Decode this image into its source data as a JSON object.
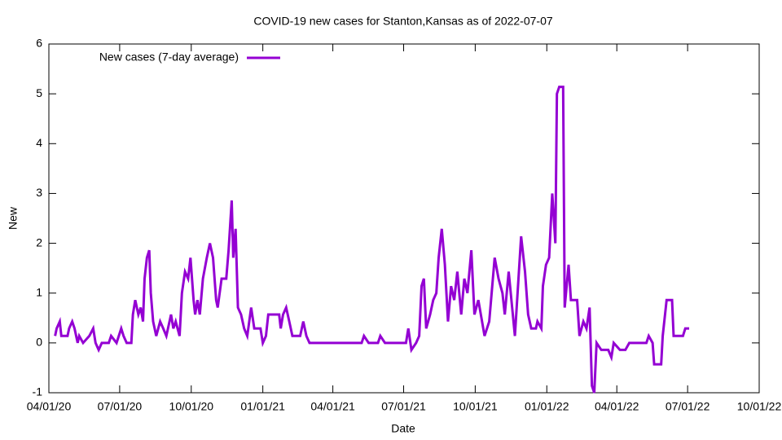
{
  "chart_data": {
    "type": "line",
    "title": "COVID-19 new cases for Stanton,Kansas as of 2022-07-07",
    "x_label": "Date",
    "y_label": "New",
    "legend": "top-left",
    "x": [
      "2020-04-09",
      "2020-04-11",
      "2020-04-15",
      "2020-04-17",
      "2020-04-25",
      "2020-04-27",
      "2020-05-01",
      "2020-05-04",
      "2020-05-08",
      "2020-05-10",
      "2020-05-15",
      "2020-05-23",
      "2020-05-28",
      "2020-05-31",
      "2020-06-04",
      "2020-06-08",
      "2020-06-17",
      "2020-06-20",
      "2020-06-27",
      "2020-07-03",
      "2020-07-06",
      "2020-07-10",
      "2020-07-16",
      "2020-07-18",
      "2020-07-21",
      "2020-07-25",
      "2020-07-28",
      "2020-07-31",
      "2020-08-02",
      "2020-08-05",
      "2020-08-08",
      "2020-08-10",
      "2020-08-13",
      "2020-08-17",
      "2020-08-22",
      "2020-08-26",
      "2020-08-30",
      "2020-09-05",
      "2020-09-08",
      "2020-09-11",
      "2020-09-16",
      "2020-09-19",
      "2020-09-23",
      "2020-09-27",
      "2020-09-30",
      "2020-10-04",
      "2020-10-06",
      "2020-10-09",
      "2020-10-12",
      "2020-10-16",
      "2020-10-21",
      "2020-10-25",
      "2020-10-29",
      "2020-11-02",
      "2020-11-04",
      "2020-11-09",
      "2020-11-15",
      "2020-11-18",
      "2020-11-22",
      "2020-11-24",
      "2020-11-27",
      "2020-11-30",
      "2020-12-04",
      "2020-12-08",
      "2020-12-12",
      "2020-12-17",
      "2020-12-21",
      "2020-12-29",
      "2021-01-01",
      "2021-01-05",
      "2021-01-08",
      "2021-01-14",
      "2021-01-22",
      "2021-01-24",
      "2021-01-27",
      "2021-01-31",
      "2021-02-04",
      "2021-02-08",
      "2021-02-13",
      "2021-02-18",
      "2021-02-22",
      "2021-02-26",
      "2021-03-02",
      "2021-05-08",
      "2021-05-11",
      "2021-05-17",
      "2021-05-29",
      "2021-06-01",
      "2021-06-07",
      "2021-07-04",
      "2021-07-07",
      "2021-07-11",
      "2021-07-17",
      "2021-07-21",
      "2021-07-24",
      "2021-07-27",
      "2021-07-30",
      "2021-08-04",
      "2021-08-08",
      "2021-08-12",
      "2021-08-15",
      "2021-08-19",
      "2021-08-23",
      "2021-08-27",
      "2021-08-31",
      "2021-09-04",
      "2021-09-08",
      "2021-09-13",
      "2021-09-17",
      "2021-09-21",
      "2021-09-26",
      "2021-09-30",
      "2021-10-05",
      "2021-10-13",
      "2021-10-19",
      "2021-10-26",
      "2021-10-31",
      "2021-11-05",
      "2021-11-08",
      "2021-11-13",
      "2021-11-21",
      "2021-11-25",
      "2021-11-29",
      "2021-12-04",
      "2021-12-08",
      "2021-12-12",
      "2021-12-18",
      "2021-12-20",
      "2021-12-25",
      "2021-12-27",
      "2021-12-31",
      "2022-01-04",
      "2022-01-08",
      "2022-01-12",
      "2022-01-14",
      "2022-01-17",
      "2022-01-22",
      "2022-01-24",
      "2022-01-29",
      "2022-02-01",
      "2022-02-09",
      "2022-02-12",
      "2022-02-17",
      "2022-02-21",
      "2022-02-25",
      "2022-02-28",
      "2022-03-03",
      "2022-03-06",
      "2022-03-12",
      "2022-03-21",
      "2022-03-25",
      "2022-03-28",
      "2022-04-05",
      "2022-04-12",
      "2022-04-17",
      "2022-05-09",
      "2022-05-12",
      "2022-05-17",
      "2022-05-19",
      "2022-05-28",
      "2022-05-30",
      "2022-06-04",
      "2022-06-11",
      "2022-06-13",
      "2022-06-25",
      "2022-06-28",
      "2022-07-03"
    ],
    "series": [
      {
        "name": "New cases (7-day average)",
        "color": "#9400d3",
        "values": [
          0.14,
          0.29,
          0.43,
          0.14,
          0.14,
          0.29,
          0.43,
          0.29,
          0,
          0.14,
          0,
          0.14,
          0.29,
          0,
          -0.14,
          0,
          0,
          0.14,
          0,
          0.29,
          0.14,
          0,
          0,
          0.57,
          0.86,
          0.57,
          0.71,
          0.43,
          1.29,
          1.71,
          1.86,
          1.0,
          0.43,
          0.14,
          0.43,
          0.29,
          0.14,
          0.57,
          0.29,
          0.43,
          0.14,
          1.0,
          1.43,
          1.29,
          1.71,
          0.86,
          0.57,
          0.86,
          0.57,
          1.29,
          1.71,
          2.0,
          1.71,
          0.86,
          0.71,
          1.29,
          1.29,
          1.86,
          2.86,
          1.71,
          2.29,
          0.71,
          0.57,
          0.29,
          0.14,
          0.71,
          0.29,
          0.29,
          0,
          0.14,
          0.57,
          0.57,
          0.57,
          0.29,
          0.57,
          0.71,
          0.43,
          0.14,
          0.14,
          0.14,
          0.43,
          0.14,
          0,
          0,
          0.14,
          0,
          0,
          0.14,
          0,
          0,
          0.29,
          -0.14,
          0,
          0.14,
          1.14,
          1.29,
          0.29,
          0.57,
          0.86,
          1.0,
          1.71,
          2.29,
          1.57,
          0.43,
          1.14,
          0.86,
          1.43,
          0.57,
          1.29,
          1.0,
          1.86,
          0.57,
          0.86,
          0.14,
          0.43,
          1.71,
          1.29,
          1.0,
          0.57,
          1.43,
          0.14,
          1.14,
          2.14,
          1.43,
          0.57,
          0.29,
          0.29,
          0.43,
          0.29,
          1.14,
          1.57,
          1.71,
          3.0,
          2.0,
          5.0,
          5.14,
          5.14,
          0.71,
          1.57,
          0.86,
          0.86,
          0.14,
          0.43,
          0.29,
          0.71,
          -0.86,
          -1.0,
          0,
          -0.14,
          -0.14,
          -0.29,
          0,
          -0.14,
          -0.14,
          0,
          0,
          0.14,
          0,
          -0.43,
          -0.43,
          0.14,
          0.86,
          0.86,
          0.14,
          0.14,
          0.29,
          0.29
        ]
      }
    ],
    "xlim": [
      "2020-04-01",
      "2022-10-01"
    ],
    "xticks": [
      {
        "value": "2020-04-01",
        "label": "04/01/20"
      },
      {
        "value": "2020-07-01",
        "label": "07/01/20"
      },
      {
        "value": "2020-10-01",
        "label": "10/01/20"
      },
      {
        "value": "2021-01-01",
        "label": "01/01/21"
      },
      {
        "value": "2021-04-01",
        "label": "04/01/21"
      },
      {
        "value": "2021-07-01",
        "label": "07/01/21"
      },
      {
        "value": "2021-10-01",
        "label": "10/01/21"
      },
      {
        "value": "2022-01-01",
        "label": "01/01/22"
      },
      {
        "value": "2022-04-01",
        "label": "04/01/22"
      },
      {
        "value": "2022-07-01",
        "label": "07/01/22"
      },
      {
        "value": "2022-10-01",
        "label": "10/01/22"
      }
    ],
    "ylim": [
      -1,
      6
    ],
    "yticks": [
      -1,
      0,
      1,
      2,
      3,
      4,
      5,
      6
    ],
    "grid": false
  }
}
